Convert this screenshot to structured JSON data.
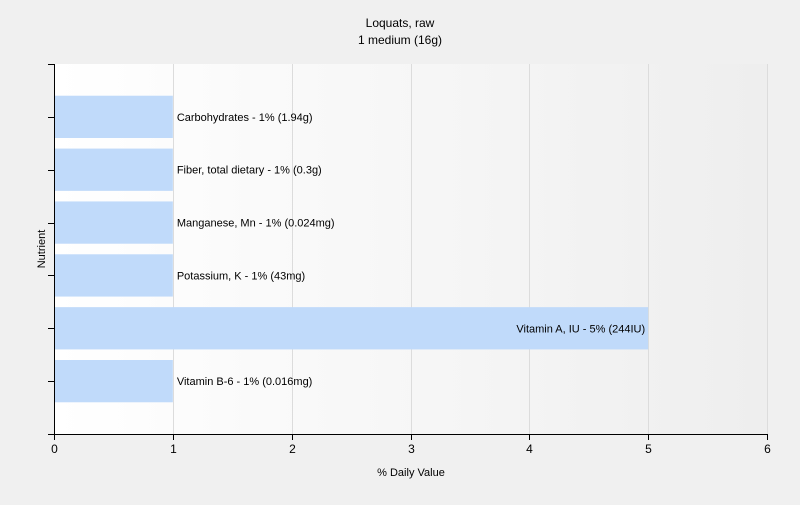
{
  "chart_data": {
    "type": "bar",
    "orientation": "horizontal",
    "title": "Loquats, raw",
    "subtitle": "1 medium (16g)",
    "xlabel": "% Daily Value",
    "ylabel": "Nutrient",
    "xlim": [
      0,
      6
    ],
    "xticks": [
      0,
      1,
      2,
      3,
      4,
      5,
      6
    ],
    "grid": true,
    "legend": "none",
    "bar_color": "#c0dafa",
    "categories": [
      "Carbohydrates",
      "Fiber, total dietary",
      "Manganese, Mn",
      "Potassium, K",
      "Vitamin A, IU",
      "Vitamin B-6"
    ],
    "values": [
      1,
      1,
      1,
      1,
      5,
      1
    ],
    "labels": [
      "Carbohydrates - 1% (1.94g)",
      "Fiber, total dietary - 1% (0.3g)",
      "Manganese, Mn - 1% (0.024mg)",
      "Potassium, K - 1% (43mg)",
      "Vitamin A, IU - 5% (244IU)",
      "Vitamin B-6 - 1% (0.016mg)"
    ]
  }
}
